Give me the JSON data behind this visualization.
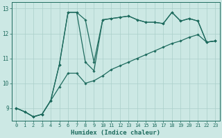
{
  "xlabel": "Humidex (Indice chaleur)",
  "bg_color": "#cce8e4",
  "grid_color": "#aacfca",
  "line_color": "#1e6b5e",
  "xlim_min": -0.5,
  "xlim_max": 23.5,
  "ylim_min": 8.5,
  "ylim_max": 13.25,
  "xticks": [
    0,
    1,
    2,
    3,
    4,
    5,
    6,
    7,
    8,
    9,
    10,
    11,
    12,
    13,
    14,
    15,
    16,
    17,
    18,
    19,
    20,
    21,
    22,
    23
  ],
  "yticks": [
    9,
    10,
    11,
    12,
    13
  ],
  "line1_x": [
    0,
    1,
    2,
    3,
    4,
    5,
    6,
    7,
    8,
    9,
    10,
    11,
    12,
    13,
    14,
    15,
    16,
    17,
    18,
    19,
    20,
    21,
    22,
    23
  ],
  "line1_y": [
    9.0,
    8.85,
    8.65,
    8.75,
    9.3,
    9.85,
    10.4,
    10.4,
    10.0,
    10.1,
    10.3,
    10.55,
    10.7,
    10.85,
    11.0,
    11.15,
    11.3,
    11.45,
    11.6,
    11.7,
    11.85,
    11.95,
    11.65,
    11.7
  ],
  "line2_x": [
    0,
    1,
    2,
    3,
    4,
    5,
    6,
    7,
    8,
    9,
    10,
    11,
    12,
    13,
    14,
    15,
    16,
    17,
    18,
    19,
    20,
    21,
    22,
    23
  ],
  "line2_y": [
    9.0,
    8.85,
    8.65,
    8.75,
    9.3,
    10.75,
    12.85,
    12.85,
    10.85,
    10.5,
    12.55,
    12.6,
    12.65,
    12.7,
    12.55,
    12.45,
    12.45,
    12.4,
    12.85,
    12.5,
    12.6,
    12.5,
    11.65,
    11.7
  ],
  "line3_x": [
    0,
    1,
    2,
    3,
    4,
    5,
    6,
    7,
    8,
    9,
    10,
    11,
    12,
    13,
    14,
    15,
    16,
    17,
    18,
    19,
    20,
    21,
    22,
    23
  ],
  "line3_y": [
    9.0,
    8.85,
    8.65,
    8.75,
    9.3,
    10.75,
    12.85,
    12.85,
    12.55,
    10.85,
    12.55,
    12.6,
    12.65,
    12.7,
    12.55,
    12.45,
    12.45,
    12.4,
    12.85,
    12.5,
    12.6,
    12.5,
    11.65,
    11.7
  ],
  "marker_size": 1.8,
  "linewidth": 0.9,
  "tick_fontsize": 5.0,
  "xlabel_fontsize": 6.5
}
